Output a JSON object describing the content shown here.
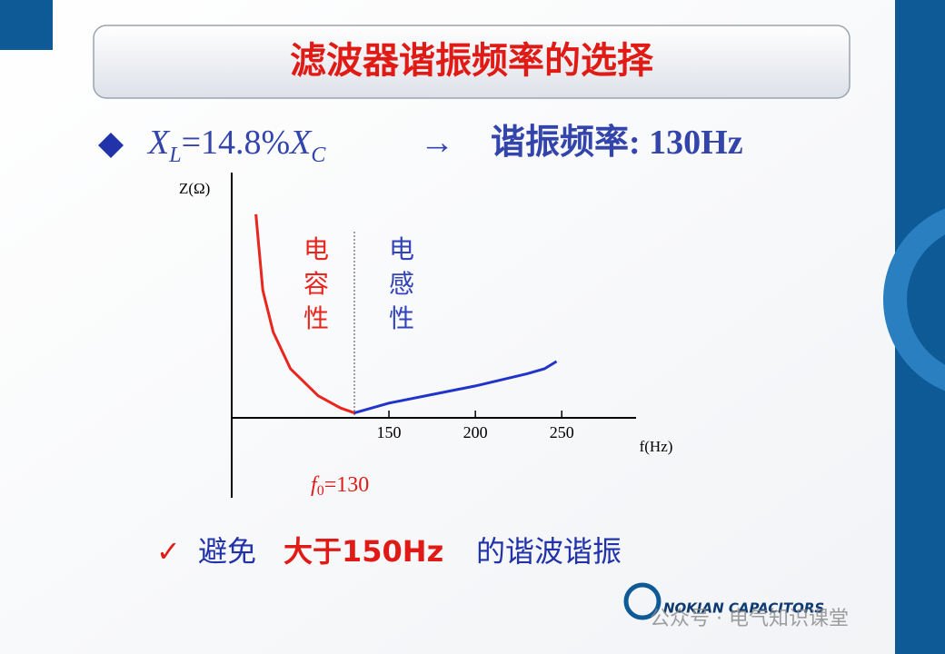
{
  "header": {
    "title": "滤波器谐振频率的选择"
  },
  "statement": {
    "parts": [
      "X",
      "L",
      "=14.8%",
      "X",
      "C",
      "→",
      "谐振频率: 130Hz"
    ]
  },
  "chart_data": {
    "type": "line",
    "xlabel": "f(Hz)",
    "ylabel": "Z(Ω)",
    "xlim": [
      59,
      293
    ],
    "ylim": [
      0,
      100
    ],
    "xticks": [
      150,
      200,
      250
    ],
    "series": [
      {
        "color": "#e8261e",
        "x": [
          73,
          77,
          83,
          93,
          109,
          122,
          130
        ],
        "values": [
          83,
          52,
          35,
          20,
          9,
          4,
          2
        ]
      },
      {
        "color": "#2233cc",
        "x": [
          130,
          150,
          200,
          230,
          240,
          247
        ],
        "values": [
          2,
          6,
          13,
          18,
          20,
          23
        ]
      }
    ],
    "annotations": [
      {
        "text": "电容性",
        "color": "#e8261e"
      },
      {
        "text": "电感性",
        "color": "#3344bb"
      }
    ],
    "f0_marker": {
      "x": 130,
      "label_parts": [
        "f",
        "0",
        "="
      ]
    }
  },
  "conclusion": {
    "parts": [
      "✓",
      "避免",
      "大于150Hz",
      "的谐波谐振"
    ]
  },
  "footer": {
    "logo": "NOKIAN CAPACITORS",
    "watermark": "公众号 · 电气知识课堂"
  }
}
